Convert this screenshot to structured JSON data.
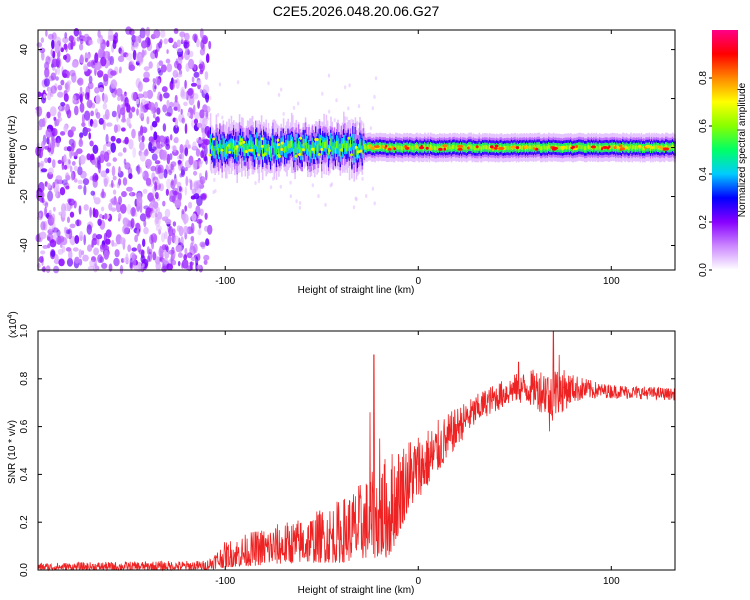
{
  "title": "C2E5.2026.048.20.06.G27",
  "chart_data": [
    {
      "type": "heatmap",
      "name": "spectrogram",
      "xlabel": "Height of straight line (km)",
      "ylabel": "Frequency (Hz)",
      "xlim": [
        -197,
        133
      ],
      "ylim": [
        -50,
        48
      ],
      "x_ticks": [
        -100,
        0,
        100
      ],
      "x_tick_labels": [
        "-100",
        "0",
        "100"
      ],
      "y_ticks": [
        -40,
        -20,
        0,
        20,
        40
      ],
      "y_tick_labels": [
        "-40",
        "-20",
        "0",
        "20",
        "40"
      ],
      "noise_region_x": [
        -197,
        -108
      ],
      "band_center_hz": 0,
      "band_halfwidth_hz": [
        {
          "x": -108,
          "hz": 5
        },
        {
          "x": -30,
          "hz": 5
        },
        {
          "x": -28,
          "hz": 3
        },
        {
          "x": 133,
          "hz": 3
        }
      ],
      "colorbar": {
        "label": "Normalized spectral amplitude",
        "range": [
          0,
          1
        ],
        "ticks": [
          0.0,
          0.2,
          0.4,
          0.6,
          0.8
        ],
        "tick_labels": [
          "0.0",
          "0.2",
          "0.4",
          "0.6",
          "0.8"
        ],
        "colors": [
          "#ffffff",
          "#cc88ff",
          "#8800ff",
          "#0000ff",
          "#00ccff",
          "#00ff66",
          "#88ff00",
          "#ffff00",
          "#ff8800",
          "#ff0000",
          "#ff0088"
        ]
      }
    },
    {
      "type": "line",
      "name": "snr",
      "xlabel": "Height of straight line (km)",
      "ylabel": "SNR (10 * v/v)",
      "y_multiplier_label": "(x10",
      "y_multiplier_exp": "4",
      "y_multiplier_close": ")",
      "xlim": [
        -197,
        133
      ],
      "ylim": [
        0,
        1.0
      ],
      "x_ticks": [
        -100,
        0,
        100
      ],
      "x_tick_labels": [
        "-100",
        "0",
        "100"
      ],
      "y_ticks": [
        0.0,
        0.2,
        0.4,
        0.6,
        0.8,
        1.0
      ],
      "y_tick_labels": [
        "0.0",
        "0.2",
        "0.4",
        "0.6",
        "0.8",
        "1.0"
      ],
      "color": "#ee2222",
      "envelope": [
        {
          "x": -197,
          "lo": 0.0,
          "hi": 0.03
        },
        {
          "x": -110,
          "lo": 0.0,
          "hi": 0.04
        },
        {
          "x": -100,
          "lo": 0.01,
          "hi": 0.12
        },
        {
          "x": -80,
          "lo": 0.02,
          "hi": 0.18
        },
        {
          "x": -60,
          "lo": 0.03,
          "hi": 0.22
        },
        {
          "x": -40,
          "lo": 0.03,
          "hi": 0.3
        },
        {
          "x": -25,
          "lo": 0.05,
          "hi": 0.4
        },
        {
          "x": -15,
          "lo": 0.05,
          "hi": 0.5
        },
        {
          "x": -5,
          "lo": 0.25,
          "hi": 0.56
        },
        {
          "x": 5,
          "lo": 0.35,
          "hi": 0.6
        },
        {
          "x": 20,
          "lo": 0.52,
          "hi": 0.68
        },
        {
          "x": 35,
          "lo": 0.64,
          "hi": 0.76
        },
        {
          "x": 50,
          "lo": 0.7,
          "hi": 0.82
        },
        {
          "x": 60,
          "lo": 0.68,
          "hi": 0.84
        },
        {
          "x": 70,
          "lo": 0.62,
          "hi": 0.86
        },
        {
          "x": 80,
          "lo": 0.7,
          "hi": 0.82
        },
        {
          "x": 95,
          "lo": 0.72,
          "hi": 0.78
        },
        {
          "x": 133,
          "lo": 0.71,
          "hi": 0.76
        }
      ],
      "spikes": [
        {
          "x": -23,
          "y": 0.9
        },
        {
          "x": -20,
          "y": 0.55
        },
        {
          "x": -25,
          "y": 0.66
        },
        {
          "x": 52,
          "y": 0.87
        },
        {
          "x": 70,
          "y": 1.0
        },
        {
          "x": 73,
          "y": 0.9
        },
        {
          "x": 68,
          "y": 0.58
        }
      ]
    }
  ]
}
